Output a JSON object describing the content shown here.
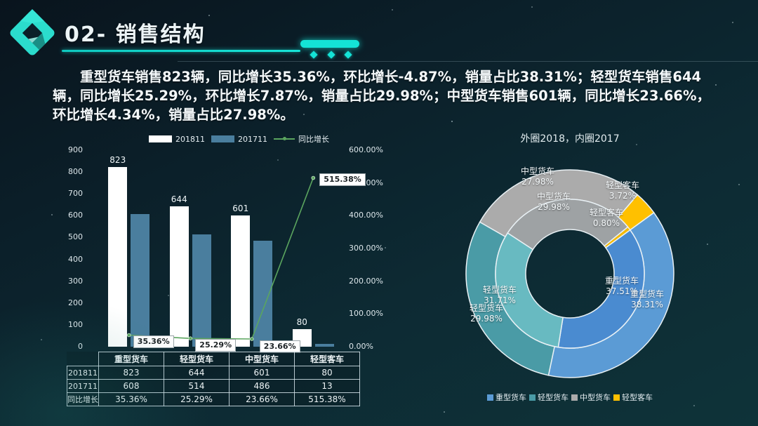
{
  "slide": {
    "title": "02- 销售结构",
    "description": "重型货车销售823辆，同比增长35.36%，环比增长-4.87%，销量占比38.31%；轻型货车销售644辆，同比增长25.29%，环比增长7.87%，销量占比29.98%；中型货车销售601辆，同比增长23.66%，环比增长4.34%，销量占比27.98%。"
  },
  "colors": {
    "accent_cyan": "#14E3D6",
    "bar_2018": "#FFFFFF",
    "bar_2017": "#4A7E9E",
    "line_green": "#5BA55F",
    "donut_outer": [
      "#5B9BD5",
      "#4A9BA6",
      "#ABABAB",
      "#FFC000"
    ],
    "donut_inner": [
      "#4A8BD0",
      "#68BAC1",
      "#9EA2A4",
      "#F5B900"
    ]
  },
  "chart_data": [
    {
      "type": "bar",
      "subtype": "combo-bar-line",
      "categories": [
        "重型货车",
        "轻型货车",
        "中型货车",
        "轻型客车"
      ],
      "series": [
        {
          "name": "201811",
          "kind": "bar",
          "color": "#FFFFFF",
          "values": [
            823,
            644,
            601,
            80
          ],
          "labels": [
            "823",
            "644",
            "601",
            "80"
          ]
        },
        {
          "name": "201711",
          "kind": "bar",
          "color": "#4A7E9E",
          "values": [
            608,
            514,
            486,
            13
          ]
        },
        {
          "name": "同比增长",
          "kind": "line",
          "axis": "right",
          "color": "#5BA55F",
          "values": [
            35.36,
            25.29,
            23.66,
            515.38
          ],
          "labels": [
            "35.36%",
            "25.29%",
            "23.66%",
            "515.38%"
          ]
        }
      ],
      "left_axis": {
        "min": 0,
        "max": 900,
        "step": 100,
        "ticks": [
          "900",
          "800",
          "700",
          "600",
          "500",
          "400",
          "300",
          "200",
          "100",
          "0"
        ]
      },
      "right_axis": {
        "min": 0,
        "max": 600,
        "ticks": [
          "600.00%",
          "500.00%",
          "400.00%",
          "300.00%",
          "200.00%",
          "100.00%",
          "0.00%"
        ]
      },
      "legend": [
        "201811",
        "201711",
        "同比增长"
      ],
      "legend_position": "top",
      "grid": false
    },
    {
      "type": "pie",
      "subtype": "double-donut",
      "title": "外圈2018，内圈2017",
      "categories": [
        "重型货车",
        "轻型货车",
        "中型货车",
        "轻型客车"
      ],
      "rings": [
        {
          "name": "外圈2018",
          "values": [
            38.31,
            29.98,
            27.98,
            3.72
          ],
          "labels": [
            "38.31%",
            "29.98%",
            "27.98%",
            "3.72%"
          ]
        },
        {
          "name": "内圈2017",
          "values": [
            37.51,
            31.71,
            29.98,
            0.8
          ],
          "labels": [
            "37.51%",
            "31.71%",
            "29.98%",
            "0.80%"
          ]
        }
      ],
      "start_angle_deg": 54,
      "legend": [
        "重型货车",
        "轻型货车",
        "中型货车",
        "轻型客车"
      ],
      "legend_position": "bottom"
    }
  ],
  "table": {
    "col_headers": [
      "重型货车",
      "轻型货车",
      "中型货车",
      "轻型客车"
    ],
    "rows": [
      {
        "label": "201811",
        "cells": [
          "823",
          "644",
          "601",
          "80"
        ]
      },
      {
        "label": "201711",
        "cells": [
          "608",
          "514",
          "486",
          "13"
        ]
      },
      {
        "label": "同比增长",
        "cells": [
          "35.36%",
          "25.29%",
          "23.66%",
          "515.38%"
        ]
      }
    ]
  }
}
